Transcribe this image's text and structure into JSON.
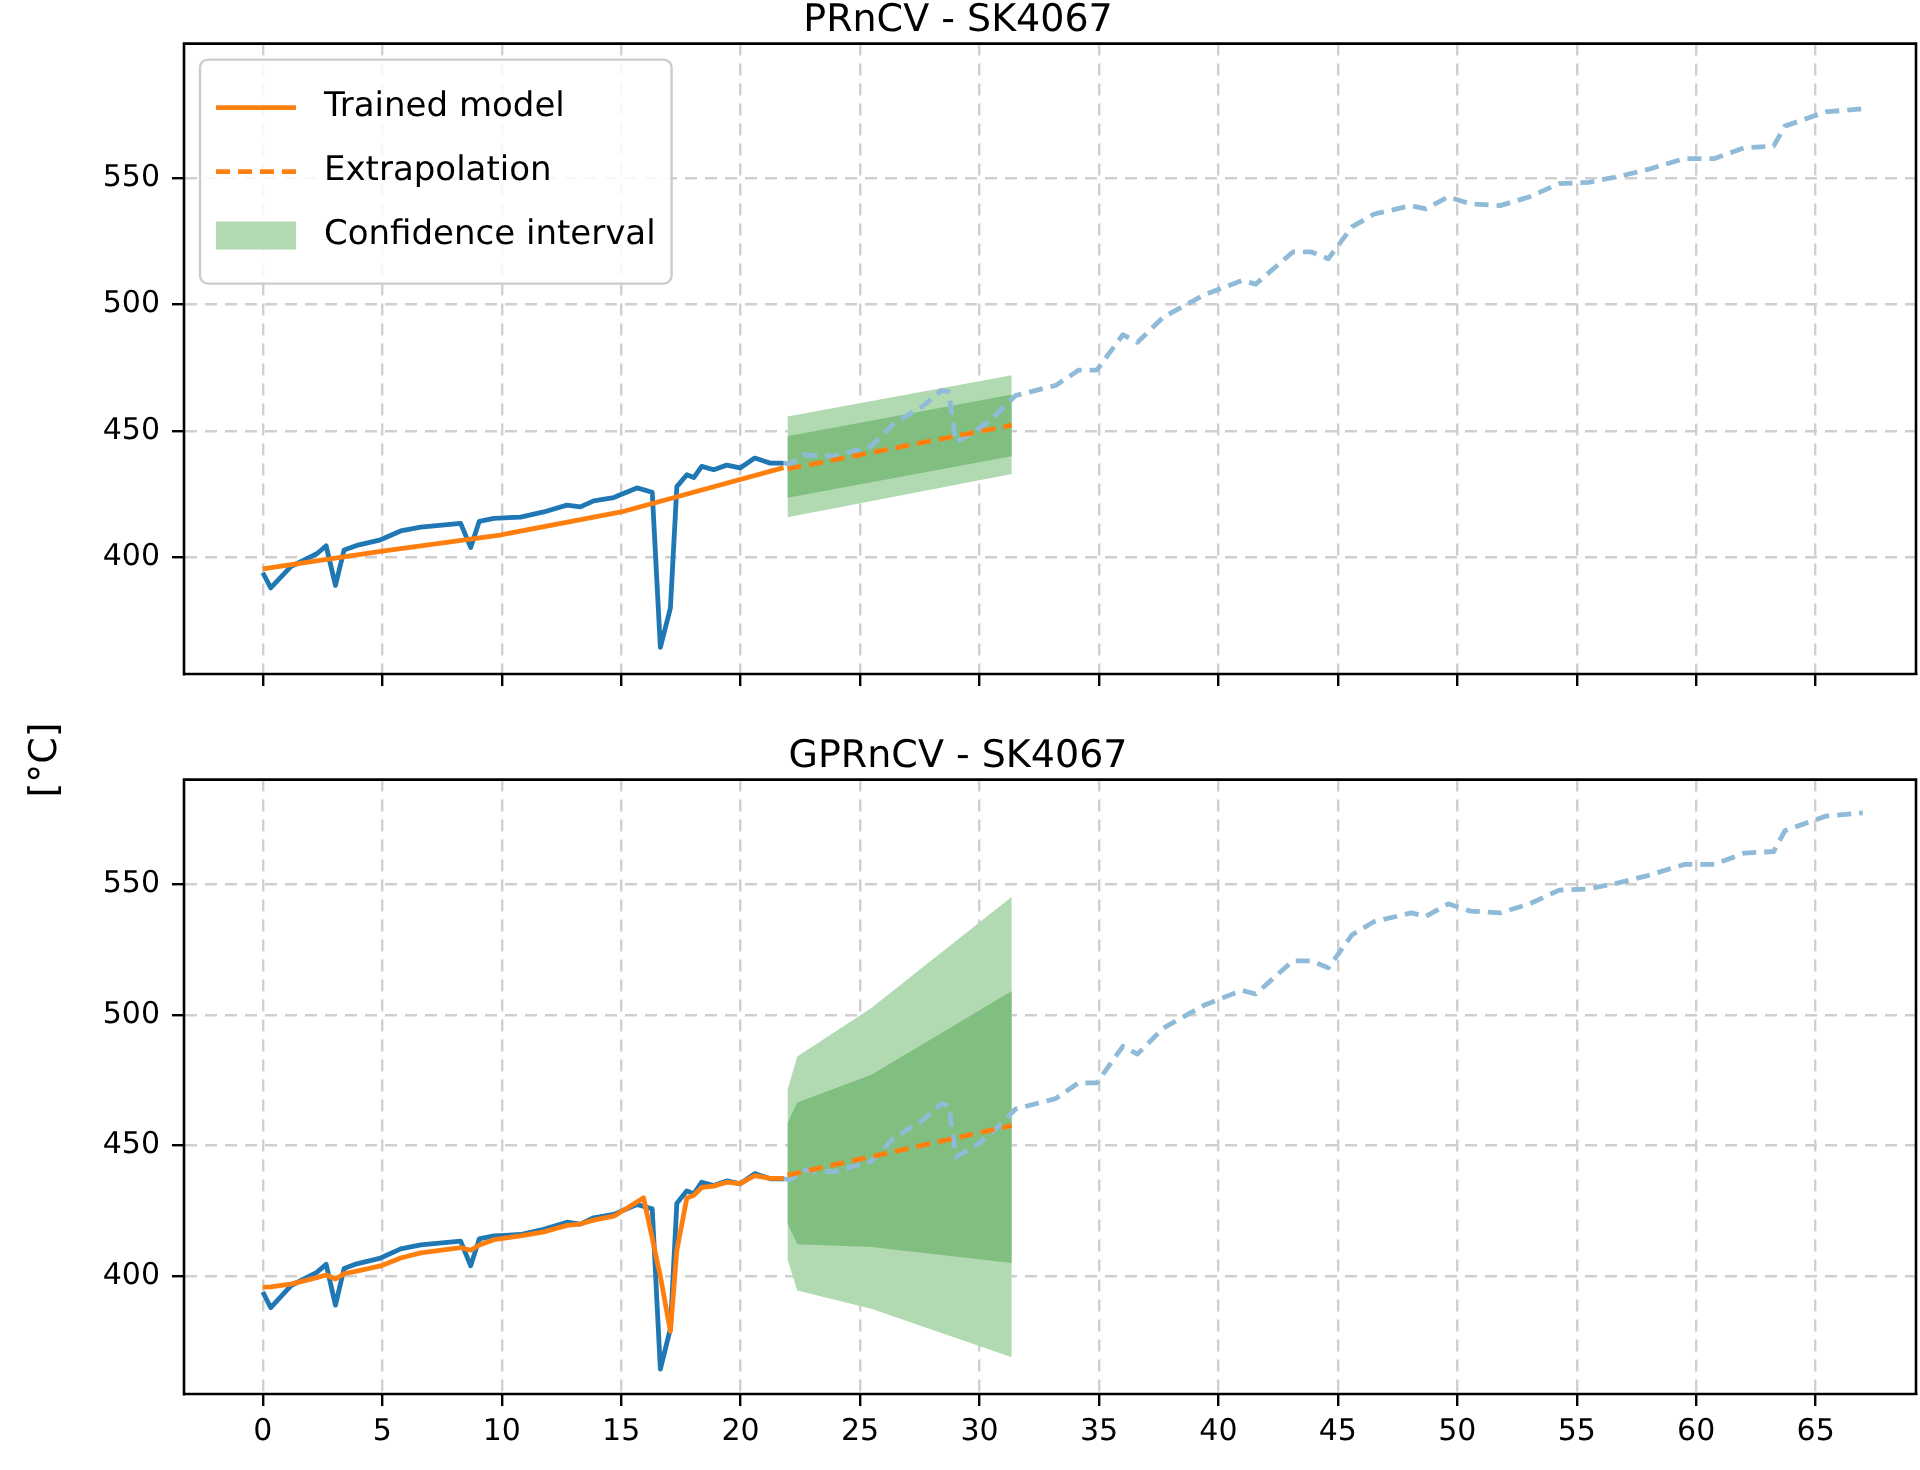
{
  "chart_data": [
    {
      "type": "line",
      "title": "PRnCV - SK4067",
      "ylabel": "[°C]",
      "xlim": [
        -3.3,
        69.2
      ],
      "ylim": [
        354,
        603
      ],
      "xticks": [
        0,
        5,
        10,
        15,
        20,
        25,
        30,
        35,
        40,
        45,
        50,
        55,
        60,
        65
      ],
      "yticks": [
        400,
        450,
        500,
        550
      ],
      "grid": true,
      "legend": "top left",
      "tick_labels": "y",
      "series": [
        {
          "name": "Trained model",
          "type": "line",
          "color": "#ff7f0e",
          "x": [
            0,
            5,
            10,
            15,
            21.8
          ],
          "values": [
            395.5,
            402.5,
            409,
            418,
            435.5
          ]
        },
        {
          "name": "Extrapolation",
          "type": "line",
          "line_style": "dashed",
          "color": "#ff7f0e",
          "x": [
            21.96,
            31.35
          ],
          "values": [
            435,
            452.3
          ]
        },
        {
          "name": "Confidence interval",
          "type": "area",
          "color": "#b2dab2",
          "x": [
            21.96,
            31.35
          ],
          "values": [
            null,
            null
          ],
          "lower": [
            415.9,
            433
          ],
          "upper": [
            455.7,
            472
          ]
        },
        {
          "type": "area",
          "color": "#80bf80",
          "x": [
            21.96,
            31.35
          ],
          "values": [
            null,
            null
          ],
          "lower": [
            423.6,
            440
          ],
          "upper": [
            447.9,
            464.4
          ]
        },
        {
          "type": "line",
          "color": "#1f77b4",
          "x": [
            0,
            0.33,
            1.17,
            2.26,
            2.65,
            3.04,
            3.4,
            3.93,
            4.93,
            5.77,
            6.61,
            8.28,
            8.7,
            9.06,
            9.67,
            10.79,
            11.76,
            12.73,
            13.29,
            13.85,
            14.69,
            15.66,
            16.3,
            16.64,
            17.06,
            17.33,
            17.75,
            18.04,
            18.37,
            18.87,
            19.42,
            19.98,
            20.59,
            21.24,
            21.8
          ],
          "values": [
            394,
            388,
            396.4,
            401.5,
            404.6,
            389,
            403,
            404.8,
            407,
            410.5,
            412,
            413.5,
            404,
            414.3,
            415.5,
            416,
            418,
            420.7,
            420,
            422.4,
            423.7,
            427.5,
            425.8,
            364.5,
            380,
            428,
            432.7,
            431.6,
            436,
            434.7,
            436.5,
            435.4,
            439.3,
            437.3,
            437.3
          ]
        },
        {
          "type": "line",
          "line_style": "dashed",
          "color": "#8fbbd9",
          "x": [
            21.8,
            22.06,
            22.65,
            23.91,
            25.47,
            26.4,
            27.63,
            28.4,
            28.71,
            29.01,
            29.8,
            30.42,
            31.51,
            33.19,
            34.14,
            34.91,
            36,
            36.61,
            37.7,
            39.4,
            40.98,
            41.56,
            43.12,
            43.89,
            44.6,
            45.59,
            46.52,
            48.07,
            48.69,
            49.62,
            50.55,
            51.79,
            53.03,
            54.26,
            55.5,
            56.74,
            57.98,
            59.52,
            60.77,
            62.01,
            63.24,
            63.71,
            65.41,
            66.97
          ],
          "values": [
            437.3,
            437,
            440.5,
            440,
            444,
            452.8,
            459.8,
            466,
            465.4,
            445.6,
            449.8,
            454,
            464,
            468,
            474,
            474,
            488,
            485,
            495,
            503.7,
            509.4,
            508,
            520.7,
            520.7,
            518,
            530.6,
            535.7,
            539,
            537.7,
            542.5,
            539.7,
            539,
            542.5,
            547.7,
            548.2,
            550.5,
            553.3,
            557.6,
            557.6,
            561.9,
            562.5,
            570.4,
            576,
            577.3
          ]
        }
      ]
    },
    {
      "type": "line",
      "title": "GPRnCV - SK4067",
      "xlim": [
        -3.3,
        69.2
      ],
      "ylim": [
        355,
        590
      ],
      "xticks": [
        0,
        5,
        10,
        15,
        20,
        25,
        30,
        35,
        40,
        45,
        50,
        55,
        60,
        65
      ],
      "yticks": [
        400,
        450,
        500,
        550
      ],
      "grid": true,
      "series": [
        {
          "type": "line",
          "color": "#ff7f0e",
          "x": [
            0,
            0.33,
            1.17,
            2.26,
            2.65,
            3.04,
            3.4,
            3.93,
            4.93,
            5.77,
            6.61,
            8.28,
            8.7,
            9.06,
            9.67,
            10.79,
            11.76,
            12.73,
            13.29,
            13.85,
            14.69,
            15.94,
            16.64,
            17.06,
            17.33,
            17.75,
            18.04,
            18.37,
            18.87,
            19.42,
            19.98,
            20.59,
            21.24,
            21.8
          ],
          "values": [
            395.9,
            396,
            397,
            399.5,
            400.5,
            399,
            401,
            402,
            404,
            407,
            409,
            411,
            410,
            412,
            414,
            415.5,
            417,
            419.5,
            420,
            421.5,
            423,
            430,
            400,
            379,
            410,
            430,
            431,
            434,
            434.5,
            436,
            435.5,
            438.5,
            437.5,
            437.5
          ]
        },
        {
          "type": "line",
          "line_style": "dashed",
          "color": "#ff7f0e",
          "x": [
            21.96,
            31.35
          ],
          "values": [
            438.7,
            457.7
          ]
        },
        {
          "type": "area",
          "color": "#b2dab2",
          "x": [
            21.96,
            22.37,
            25.47,
            31.35
          ],
          "values": [
            null,
            null,
            null,
            null
          ],
          "lower": [
            406.6,
            394.6,
            387.6,
            369.1
          ],
          "upper": [
            471.3,
            484.1,
            502.6,
            545.2
          ]
        },
        {
          "type": "area",
          "color": "#80bf80",
          "x": [
            21.96,
            22.37,
            25.47,
            31.35
          ],
          "values": [
            null,
            null,
            null,
            null
          ],
          "lower": [
            420.2,
            412.3,
            411.2,
            405.1
          ],
          "upper": [
            458.6,
            466.5,
            477.1,
            509.1
          ]
        },
        {
          "type": "line",
          "color": "#1f77b4",
          "x": [
            0,
            0.33,
            1.17,
            2.26,
            2.65,
            3.04,
            3.4,
            3.93,
            4.93,
            5.77,
            6.61,
            8.28,
            8.7,
            9.06,
            9.67,
            10.79,
            11.76,
            12.73,
            13.29,
            13.85,
            14.69,
            15.66,
            16.3,
            16.64,
            17.06,
            17.33,
            17.75,
            18.04,
            18.37,
            18.87,
            19.42,
            19.98,
            20.59,
            21.24,
            21.8
          ],
          "values": [
            394,
            388,
            396.4,
            401.5,
            404.6,
            389,
            403,
            404.8,
            407,
            410.5,
            412,
            413.5,
            404,
            414.3,
            415.5,
            416,
            418,
            420.7,
            420,
            422.4,
            423.7,
            427.5,
            425.8,
            364.5,
            380,
            428,
            432.7,
            431.6,
            436,
            434.7,
            436.5,
            435.4,
            439.3,
            437.3,
            437.3
          ]
        },
        {
          "type": "line",
          "line_style": "dashed",
          "color": "#8fbbd9",
          "x": [
            21.8,
            22.06,
            22.65,
            23.91,
            25.47,
            26.4,
            27.63,
            28.4,
            28.71,
            29.01,
            29.8,
            30.42,
            31.51,
            33.19,
            34.14,
            34.91,
            36,
            36.61,
            37.7,
            39.4,
            40.98,
            41.56,
            43.12,
            43.89,
            44.6,
            45.59,
            46.52,
            48.07,
            48.69,
            49.62,
            50.55,
            51.79,
            53.03,
            54.26,
            55.5,
            56.74,
            57.98,
            59.52,
            60.77,
            62.01,
            63.24,
            63.71,
            65.41,
            66.97
          ],
          "values": [
            437.3,
            437,
            440.5,
            440,
            444,
            452.8,
            459.8,
            466,
            465.4,
            445.6,
            449.8,
            454,
            464,
            468,
            474,
            474,
            488,
            485,
            495,
            503.7,
            509.4,
            508,
            520.7,
            520.7,
            518,
            530.6,
            535.7,
            539,
            537.7,
            542.5,
            539.7,
            539,
            542.5,
            547.7,
            548.2,
            550.5,
            553.3,
            557.6,
            557.6,
            561.9,
            562.5,
            570.4,
            576,
            577.3
          ]
        }
      ]
    }
  ]
}
